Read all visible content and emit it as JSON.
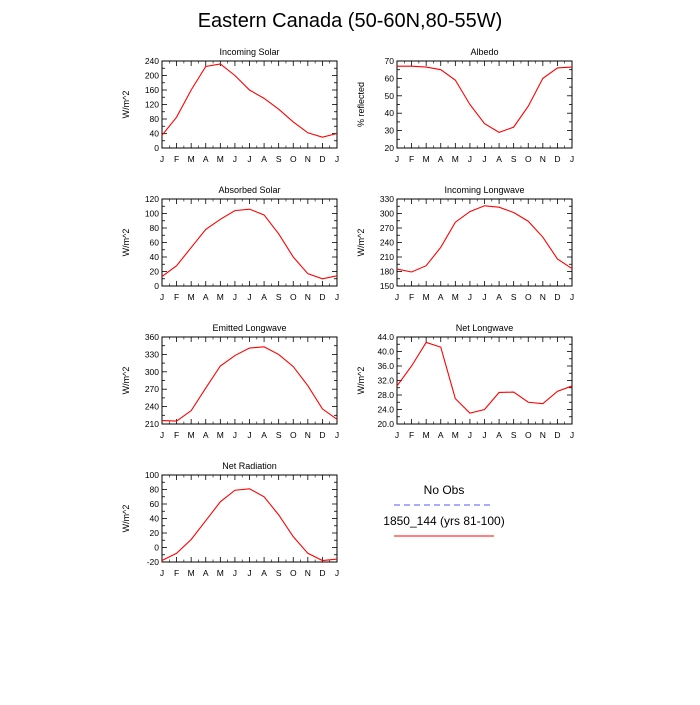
{
  "title": "Eastern Canada (50-60N,80-55W)",
  "colors": {
    "model": "#ff0000",
    "obs": "#5555ff"
  },
  "legend": {
    "items": [
      {
        "label": "No Obs",
        "style": "dashed",
        "color": "#5555ff"
      },
      {
        "label": "1850_144 (yrs 81-100)",
        "style": "solid",
        "color": "#ff0000"
      }
    ]
  },
  "chart_data": [
    {
      "type": "line",
      "title": "Incoming Solar",
      "ylabel": "W/m^2",
      "categories": [
        "J",
        "F",
        "M",
        "A",
        "M",
        "J",
        "J",
        "A",
        "S",
        "O",
        "N",
        "D",
        "J"
      ],
      "ylim": [
        0,
        240
      ],
      "yticks": [
        0,
        20,
        40,
        60,
        80,
        100,
        120,
        140,
        160,
        180,
        200,
        220,
        240
      ],
      "yticklabels": [
        "0",
        "",
        "40",
        "",
        "80",
        "",
        "120",
        "",
        "160",
        "",
        "200",
        "",
        "240"
      ],
      "series": [
        {
          "values": [
            35,
            85,
            160,
            225,
            232,
            200,
            160,
            137,
            107,
            72,
            42,
            30,
            40
          ]
        }
      ]
    },
    {
      "type": "line",
      "title": "Albedo",
      "ylabel": "% reflected",
      "categories": [
        "J",
        "F",
        "M",
        "A",
        "M",
        "J",
        "J",
        "A",
        "S",
        "O",
        "N",
        "D",
        "J"
      ],
      "ylim": [
        20,
        70
      ],
      "yticks": [
        20,
        25,
        30,
        35,
        40,
        45,
        50,
        55,
        60,
        65,
        70
      ],
      "yticklabels": [
        "20",
        "",
        "30",
        "",
        "40",
        "",
        "50",
        "",
        "60",
        "",
        "70"
      ],
      "series": [
        {
          "values": [
            67,
            67,
            66.5,
            65,
            59,
            45,
            34,
            29,
            32,
            44,
            60,
            66,
            66.5
          ]
        }
      ]
    },
    {
      "type": "line",
      "title": "Absorbed Solar",
      "ylabel": "W/m^2",
      "categories": [
        "J",
        "F",
        "M",
        "A",
        "M",
        "J",
        "J",
        "A",
        "S",
        "O",
        "N",
        "D",
        "J"
      ],
      "ylim": [
        0,
        120
      ],
      "yticks": [
        0,
        10,
        20,
        30,
        40,
        50,
        60,
        70,
        80,
        90,
        100,
        110,
        120
      ],
      "yticklabels": [
        "0",
        "",
        "20",
        "",
        "40",
        "",
        "60",
        "",
        "80",
        "",
        "100",
        "",
        "120"
      ],
      "series": [
        {
          "values": [
            13,
            28,
            53,
            78,
            92,
            104,
            106,
            98,
            72,
            40,
            17,
            10,
            14
          ]
        }
      ]
    },
    {
      "type": "line",
      "title": "Incoming Longwave",
      "ylabel": "W/m^2",
      "categories": [
        "J",
        "F",
        "M",
        "A",
        "M",
        "J",
        "J",
        "A",
        "S",
        "O",
        "N",
        "D",
        "J"
      ],
      "ylim": [
        150,
        330
      ],
      "yticks": [
        150,
        165,
        180,
        195,
        210,
        225,
        240,
        255,
        270,
        285,
        300,
        315,
        330
      ],
      "yticklabels": [
        "150",
        "",
        "180",
        "",
        "210",
        "",
        "240",
        "",
        "270",
        "",
        "300",
        "",
        "330"
      ],
      "series": [
        {
          "values": [
            185,
            179,
            192,
            230,
            282,
            304,
            316,
            313,
            302,
            284,
            251,
            206,
            186
          ]
        }
      ]
    },
    {
      "type": "line",
      "title": "Emitted Longwave",
      "ylabel": "W/m^2",
      "categories": [
        "J",
        "F",
        "M",
        "A",
        "M",
        "J",
        "J",
        "A",
        "S",
        "O",
        "N",
        "D",
        "J"
      ],
      "ylim": [
        210,
        360
      ],
      "yticks": [
        210,
        225,
        240,
        255,
        270,
        285,
        300,
        315,
        330,
        345,
        360
      ],
      "yticklabels": [
        "210",
        "",
        "240",
        "",
        "270",
        "",
        "300",
        "",
        "330",
        "",
        "360"
      ],
      "series": [
        {
          "values": [
            216,
            215,
            233,
            272,
            310,
            328,
            341,
            343,
            330,
            309,
            276,
            236,
            218
          ]
        }
      ]
    },
    {
      "type": "line",
      "title": "Net Longwave",
      "ylabel": "W/m^2",
      "categories": [
        "J",
        "F",
        "M",
        "A",
        "M",
        "J",
        "J",
        "A",
        "S",
        "O",
        "N",
        "D",
        "J"
      ],
      "ylim": [
        20,
        44
      ],
      "yticks": [
        20,
        22,
        24,
        26,
        28,
        30,
        32,
        34,
        36,
        38,
        40,
        42,
        44
      ],
      "yticklabels": [
        "20.0",
        "",
        "24.0",
        "",
        "28.0",
        "",
        "32.0",
        "",
        "36.0",
        "",
        "40.0",
        "",
        "44.0"
      ],
      "series": [
        {
          "values": [
            30.5,
            36,
            42.5,
            41.2,
            27,
            23,
            24,
            28.7,
            28.8,
            26,
            25.6,
            29,
            30.5
          ]
        }
      ]
    },
    {
      "type": "line",
      "title": "Net Radiation",
      "ylabel": "W/m^2",
      "categories": [
        "J",
        "F",
        "M",
        "A",
        "M",
        "J",
        "J",
        "A",
        "S",
        "O",
        "N",
        "D",
        "J"
      ],
      "ylim": [
        -20,
        100
      ],
      "yticks": [
        -20,
        -10,
        0,
        10,
        20,
        30,
        40,
        50,
        60,
        70,
        80,
        90,
        100
      ],
      "yticklabels": [
        "-20",
        "",
        "0",
        "",
        "20",
        "",
        "40",
        "",
        "60",
        "",
        "80",
        "",
        "100"
      ],
      "series": [
        {
          "values": [
            -18,
            -8,
            11,
            37,
            63,
            79,
            81,
            70,
            45,
            15,
            -8,
            -18,
            -16
          ]
        }
      ]
    }
  ]
}
